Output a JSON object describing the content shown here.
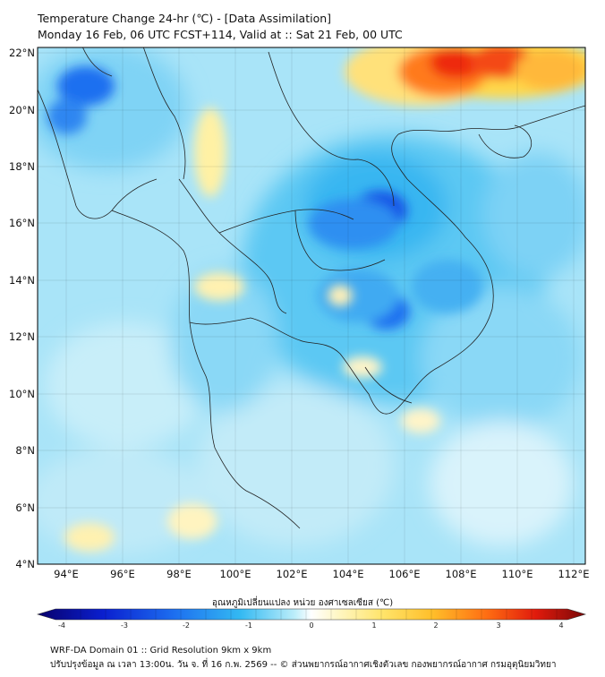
{
  "header": {
    "title_line1": "Temperature Change 24-hr (℃) - [Data Assimilation]",
    "title_line2": "Monday 16 Feb, 06 UTC FCST+114, Valid at :: Sat 21 Feb, 00 UTC"
  },
  "map": {
    "lat_labels": [
      "22°N",
      "20°N",
      "18°N",
      "16°N",
      "14°N",
      "12°N",
      "10°N",
      "8°N",
      "6°N",
      "4°N"
    ],
    "lon_labels": [
      "94°E",
      "96°E",
      "98°E",
      "100°E",
      "102°E",
      "104°E",
      "106°E",
      "108°E",
      "110°E",
      "112°E"
    ],
    "lon_range": [
      93,
      112.5
    ],
    "lat_range": [
      4,
      22.2
    ],
    "gridlines": true
  },
  "colorbar": {
    "title": "อุณหภูมิเปลี่ยนแปลง หน่วย องศาเซลเซียส (℃)",
    "ticks": [
      "-4",
      "-3",
      "-2",
      "-1",
      "0",
      "1",
      "2",
      "3",
      "4"
    ],
    "range": [
      -4,
      4
    ],
    "colors": [
      "#08006b",
      "#0a1fcf",
      "#1d6ff0",
      "#33b9f2",
      "#8fe0f5",
      "#ffffff",
      "#fff3a8",
      "#ffd23a",
      "#ff8a14",
      "#e81b0c",
      "#8a0a08"
    ]
  },
  "footer": {
    "line1": "WRF-DA Domain 01 :: Grid Resolution 9km x 9km",
    "line2": "ปรับปรุงข้อมูล ณ เวลา 13:00น. วัน จ. ที่ 16 ก.พ. 2569 -- © ส่วนพยากรณ์อากาศเชิงตัวเลข กองพยากรณ์อากาศ กรมอุตุนิยมวิทยา"
  }
}
